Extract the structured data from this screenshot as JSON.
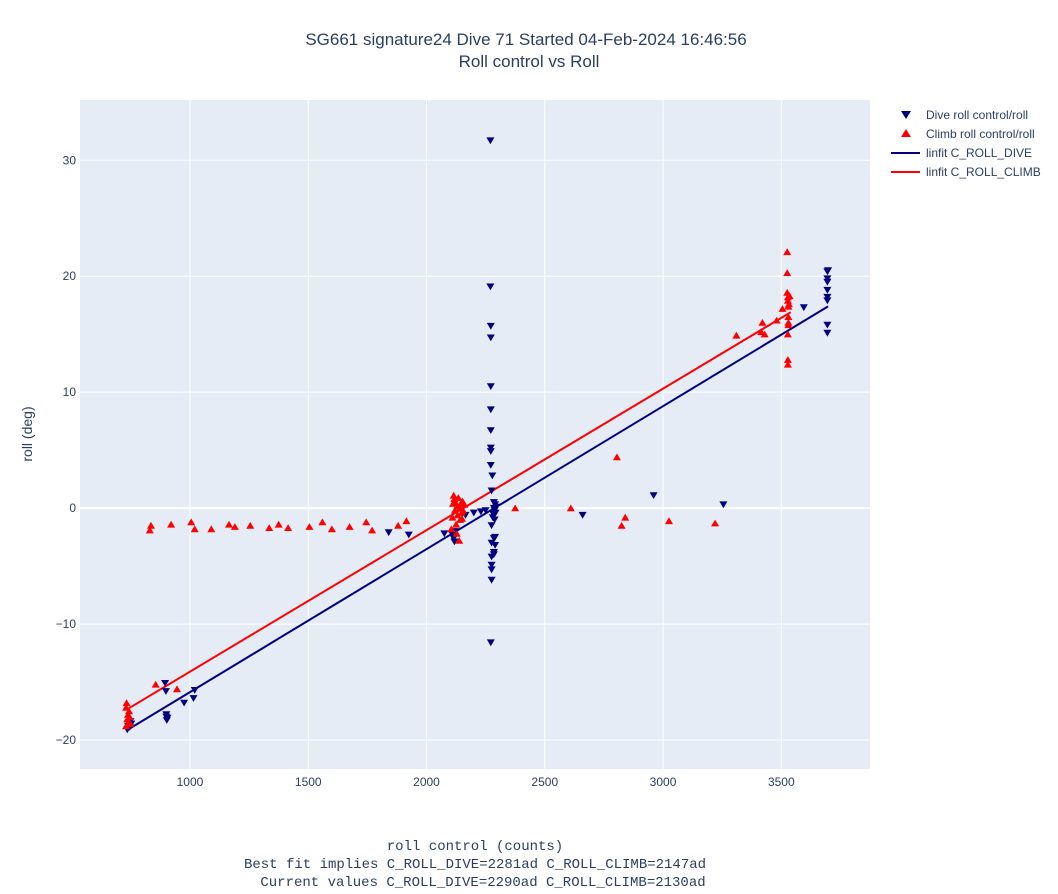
{
  "chart_data": {
    "type": "scatter",
    "title_lines": [
      "SG661 signature24 Dive 71 Started 04-Feb-2024 16:46:56",
      "Roll control vs Roll"
    ],
    "xlabel_lines": [
      "roll control (counts)",
      "Best fit implies C_ROLL_DIVE=2281ad C_ROLL_CLIMB=2147ad",
      "Current values C_ROLL_DIVE=2290ad C_ROLL_CLIMB=2130ad"
    ],
    "ylabel": "roll (deg)",
    "xlim": [
      535,
      3875
    ],
    "ylim": [
      -22.5,
      35.2
    ],
    "xticks": [
      1000,
      1500,
      2000,
      2500,
      3000,
      3500
    ],
    "yticks": [
      -20,
      -10,
      0,
      10,
      20,
      30
    ],
    "grid": true,
    "legend_position": "top-right",
    "colors": {
      "dive": "#00007f",
      "climb": "#ff0000",
      "plot_bg": "#e5ecf6",
      "grid": "#ffffff",
      "text": "#2a3f5f"
    },
    "series": [
      {
        "name": "Dive roll control/roll",
        "kind": "markers",
        "marker": "triangle-down",
        "color": "#00007f",
        "points": [
          [
            735,
            -19.1
          ],
          [
            738,
            -18.8
          ],
          [
            742,
            -18.6
          ],
          [
            745,
            -18.9
          ],
          [
            748,
            -18.4
          ],
          [
            752,
            -18.6
          ],
          [
            895,
            -15.1
          ],
          [
            898,
            -15.8
          ],
          [
            900,
            -18.0
          ],
          [
            902,
            -18.3
          ],
          [
            900,
            -17.8
          ],
          [
            905,
            -18.1
          ],
          [
            975,
            -16.8
          ],
          [
            1015,
            -16.4
          ],
          [
            1020,
            -15.7
          ],
          [
            1840,
            -2.1
          ],
          [
            1925,
            -2.3
          ],
          [
            2075,
            -2.2
          ],
          [
            2110,
            -2.3
          ],
          [
            2115,
            -2.6
          ],
          [
            2118,
            -2.9
          ],
          [
            2120,
            -2.0
          ],
          [
            2165,
            -0.6
          ],
          [
            2200,
            -0.4
          ],
          [
            2230,
            -0.3
          ],
          [
            2250,
            -0.2
          ],
          [
            2270,
            31.7
          ],
          [
            2270,
            19.1
          ],
          [
            2272,
            15.7
          ],
          [
            2272,
            14.7
          ],
          [
            2272,
            10.5
          ],
          [
            2272,
            8.5
          ],
          [
            2272,
            6.7
          ],
          [
            2272,
            5.2
          ],
          [
            2272,
            4.9
          ],
          [
            2272,
            3.7
          ],
          [
            2278,
            2.8
          ],
          [
            2275,
            1.5
          ],
          [
            2275,
            -1.5
          ],
          [
            2275,
            -3.0
          ],
          [
            2275,
            -4.2
          ],
          [
            2275,
            -4.9
          ],
          [
            2275,
            -5.3
          ],
          [
            2275,
            -6.2
          ],
          [
            2272,
            -11.6
          ],
          [
            2280,
            -0.8
          ],
          [
            2282,
            -0.5
          ],
          [
            2285,
            0.0
          ],
          [
            2285,
            0.5
          ],
          [
            2288,
            -0.2
          ],
          [
            2290,
            0.3
          ],
          [
            2292,
            -0.4
          ],
          [
            2295,
            0.1
          ],
          [
            2288,
            -1.0
          ],
          [
            2285,
            -2.6
          ],
          [
            2285,
            -3.8
          ],
          [
            2285,
            -4.0
          ],
          [
            2290,
            -3.2
          ],
          [
            2290,
            -2.5
          ],
          [
            2660,
            -0.6
          ],
          [
            2960,
            1.1
          ],
          [
            3255,
            0.3
          ],
          [
            3595,
            17.3
          ],
          [
            3695,
            20.4
          ],
          [
            3695,
            19.8
          ],
          [
            3695,
            19.5
          ],
          [
            3695,
            18.8
          ],
          [
            3695,
            18.2
          ],
          [
            3695,
            17.9
          ],
          [
            3695,
            15.8
          ],
          [
            3695,
            15.1
          ],
          [
            3698,
            20.5
          ]
        ]
      },
      {
        "name": "Climb roll control/roll",
        "kind": "markers",
        "marker": "triangle-up",
        "color": "#ff0000",
        "points": [
          [
            730,
            -18.8
          ],
          [
            730,
            -17.2
          ],
          [
            732,
            -16.8
          ],
          [
            735,
            -18.2
          ],
          [
            738,
            -17.8
          ],
          [
            740,
            -18.5
          ],
          [
            742,
            -17.5
          ],
          [
            745,
            -18.0
          ],
          [
            748,
            -18.6
          ],
          [
            830,
            -1.9
          ],
          [
            835,
            -1.5
          ],
          [
            855,
            -15.2
          ],
          [
            920,
            -1.4
          ],
          [
            945,
            -15.6
          ],
          [
            1005,
            -1.2
          ],
          [
            1020,
            -1.8
          ],
          [
            1090,
            -1.8
          ],
          [
            1165,
            -1.4
          ],
          [
            1190,
            -1.6
          ],
          [
            1255,
            -1.5
          ],
          [
            1335,
            -1.7
          ],
          [
            1375,
            -1.4
          ],
          [
            1415,
            -1.7
          ],
          [
            1505,
            -1.6
          ],
          [
            1560,
            -1.2
          ],
          [
            1600,
            -1.8
          ],
          [
            1675,
            -1.6
          ],
          [
            1745,
            -1.2
          ],
          [
            1770,
            -1.9
          ],
          [
            1880,
            -1.5
          ],
          [
            1915,
            -1.1
          ],
          [
            2105,
            -1.8
          ],
          [
            2110,
            -0.8
          ],
          [
            2112,
            0.4
          ],
          [
            2115,
            1.1
          ],
          [
            2118,
            0.8
          ],
          [
            2120,
            -0.2
          ],
          [
            2122,
            0.5
          ],
          [
            2125,
            -1.4
          ],
          [
            2128,
            -2.2
          ],
          [
            2130,
            0.2
          ],
          [
            2132,
            -0.6
          ],
          [
            2135,
            0.9
          ],
          [
            2138,
            -2.8
          ],
          [
            2140,
            0.0
          ],
          [
            2142,
            -1.0
          ],
          [
            2145,
            0.4
          ],
          [
            2148,
            -0.4
          ],
          [
            2150,
            -0.9
          ],
          [
            2152,
            0.6
          ],
          [
            2155,
            -0.2
          ],
          [
            2160,
            0.3
          ],
          [
            2375,
            0.0
          ],
          [
            2610,
            0.0
          ],
          [
            2805,
            4.4
          ],
          [
            2825,
            -1.5
          ],
          [
            2840,
            -0.8
          ],
          [
            3025,
            -1.1
          ],
          [
            3220,
            -1.3
          ],
          [
            3310,
            14.9
          ],
          [
            3415,
            15.2
          ],
          [
            3420,
            16.0
          ],
          [
            3430,
            15.0
          ],
          [
            3480,
            16.2
          ],
          [
            3505,
            17.2
          ],
          [
            3525,
            22.1
          ],
          [
            3525,
            20.3
          ],
          [
            3525,
            18.6
          ],
          [
            3528,
            18.2
          ],
          [
            3528,
            17.9
          ],
          [
            3530,
            17.4
          ],
          [
            3530,
            16.5
          ],
          [
            3530,
            16.0
          ],
          [
            3530,
            15.8
          ],
          [
            3528,
            15.0
          ],
          [
            3528,
            12.8
          ],
          [
            3528,
            12.4
          ],
          [
            3532,
            17.6
          ],
          [
            3535,
            18.3
          ]
        ]
      },
      {
        "name": "linfit C_ROLL_DIVE",
        "kind": "line",
        "color": "#00007f",
        "points": [
          [
            730,
            -19.2
          ],
          [
            3698,
            17.4
          ]
        ]
      },
      {
        "name": "linfit C_ROLL_CLIMB",
        "kind": "line",
        "color": "#ff0000",
        "points": [
          [
            730,
            -17.4
          ],
          [
            3540,
            16.9
          ]
        ]
      }
    ]
  }
}
